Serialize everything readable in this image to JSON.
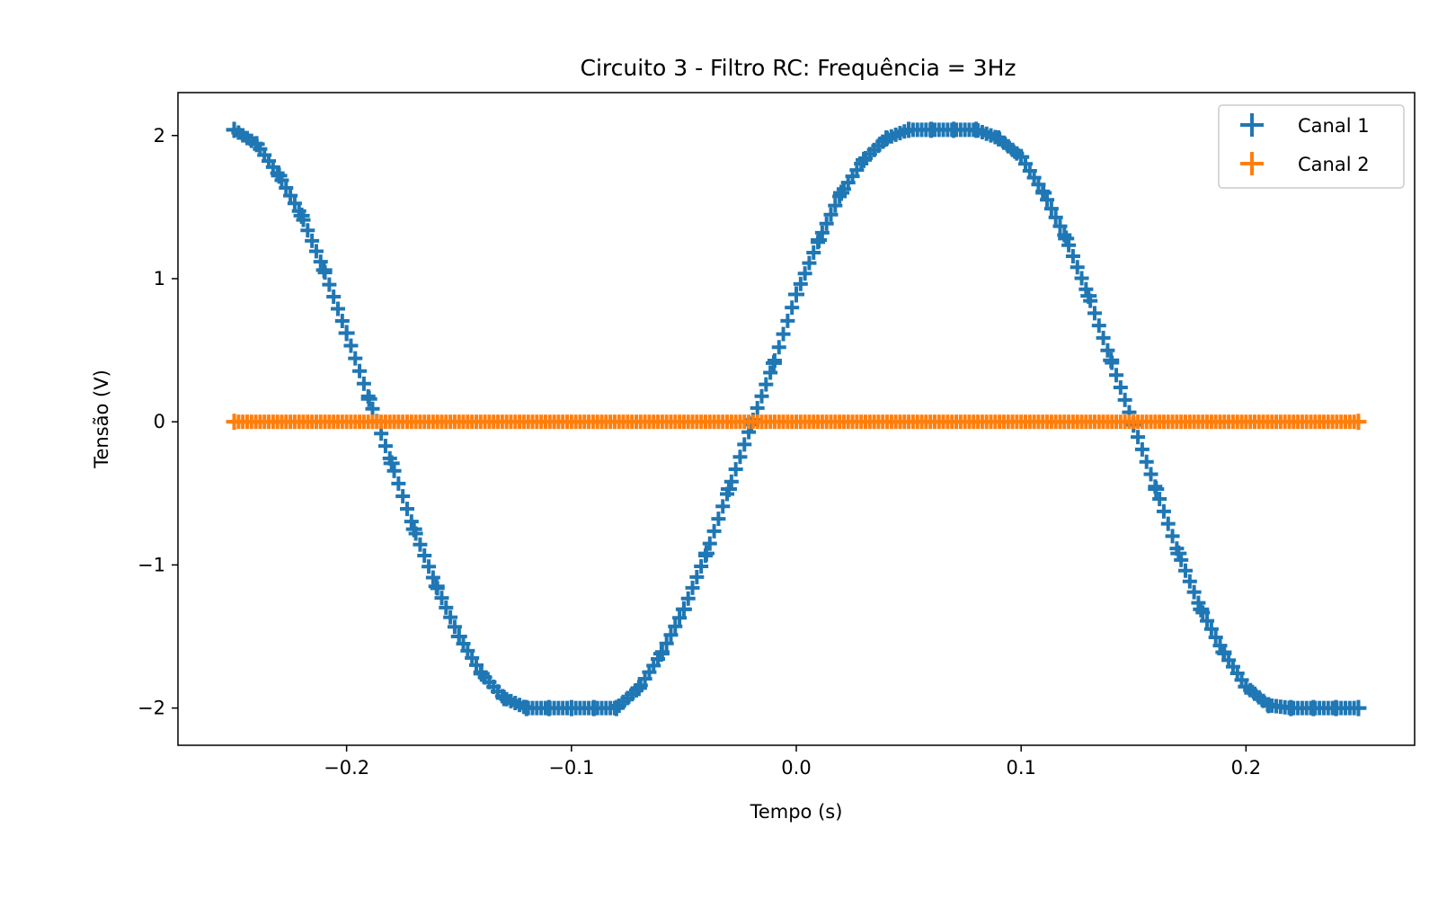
{
  "chart_data": {
    "type": "scatter",
    "title": "Circuito 3 - Filtro RC: Frequência = 3Hz",
    "xlabel": "Tempo (s)",
    "ylabel": "Tensão (V)",
    "xlim": [
      -0.275,
      0.275
    ],
    "ylim": [
      -2.26,
      2.3
    ],
    "x_ticks": [
      -0.2,
      -0.1,
      0.0,
      0.1,
      0.2
    ],
    "x_tick_labels": [
      "−0.2",
      "−0.1",
      "0.0",
      "0.1",
      "0.2"
    ],
    "y_ticks": [
      -2,
      -1,
      0,
      1,
      2
    ],
    "y_tick_labels": [
      "−2",
      "−1",
      "0",
      "1",
      "2"
    ],
    "grid": false,
    "legend_position": "top-right",
    "marker": "plus",
    "series": [
      {
        "name": "Canal 1",
        "color": "#1f77b4",
        "x": [
          -0.25,
          -0.24,
          -0.23,
          -0.22,
          -0.21,
          -0.2,
          -0.19,
          -0.18,
          -0.17,
          -0.16,
          -0.15,
          -0.14,
          -0.13,
          -0.12,
          -0.11,
          -0.1,
          -0.09,
          -0.08,
          -0.07,
          -0.06,
          -0.05,
          -0.04,
          -0.03,
          -0.02,
          -0.01,
          0.0,
          0.01,
          0.02,
          0.03,
          0.04,
          0.05,
          0.06,
          0.07,
          0.08,
          0.09,
          0.1,
          0.11,
          0.12,
          0.13,
          0.14,
          0.15,
          0.16,
          0.17,
          0.18,
          0.19,
          0.2,
          0.21,
          0.22,
          0.23,
          0.24,
          0.25
        ],
        "y": [
          2.04,
          1.94,
          1.72,
          1.44,
          1.06,
          0.62,
          0.16,
          -0.29,
          -0.75,
          -1.15,
          -1.5,
          -1.76,
          -1.93,
          -2.0,
          -2.0,
          -2.0,
          -2.0,
          -2.0,
          -1.86,
          -1.62,
          -1.31,
          -0.92,
          -0.47,
          -0.02,
          0.41,
          0.89,
          1.27,
          1.6,
          1.83,
          1.98,
          2.04,
          2.04,
          2.04,
          2.04,
          1.98,
          1.85,
          1.6,
          1.28,
          0.88,
          0.43,
          -0.02,
          -0.47,
          -0.92,
          -1.31,
          -1.61,
          -1.85,
          -1.98,
          -2.0,
          -2.0,
          -2.0,
          -2.0
        ]
      },
      {
        "name": "Canal 2",
        "color": "#ff7f0e",
        "x": [
          -0.25,
          0.25
        ],
        "y": [
          0.0,
          0.0
        ]
      }
    ]
  }
}
